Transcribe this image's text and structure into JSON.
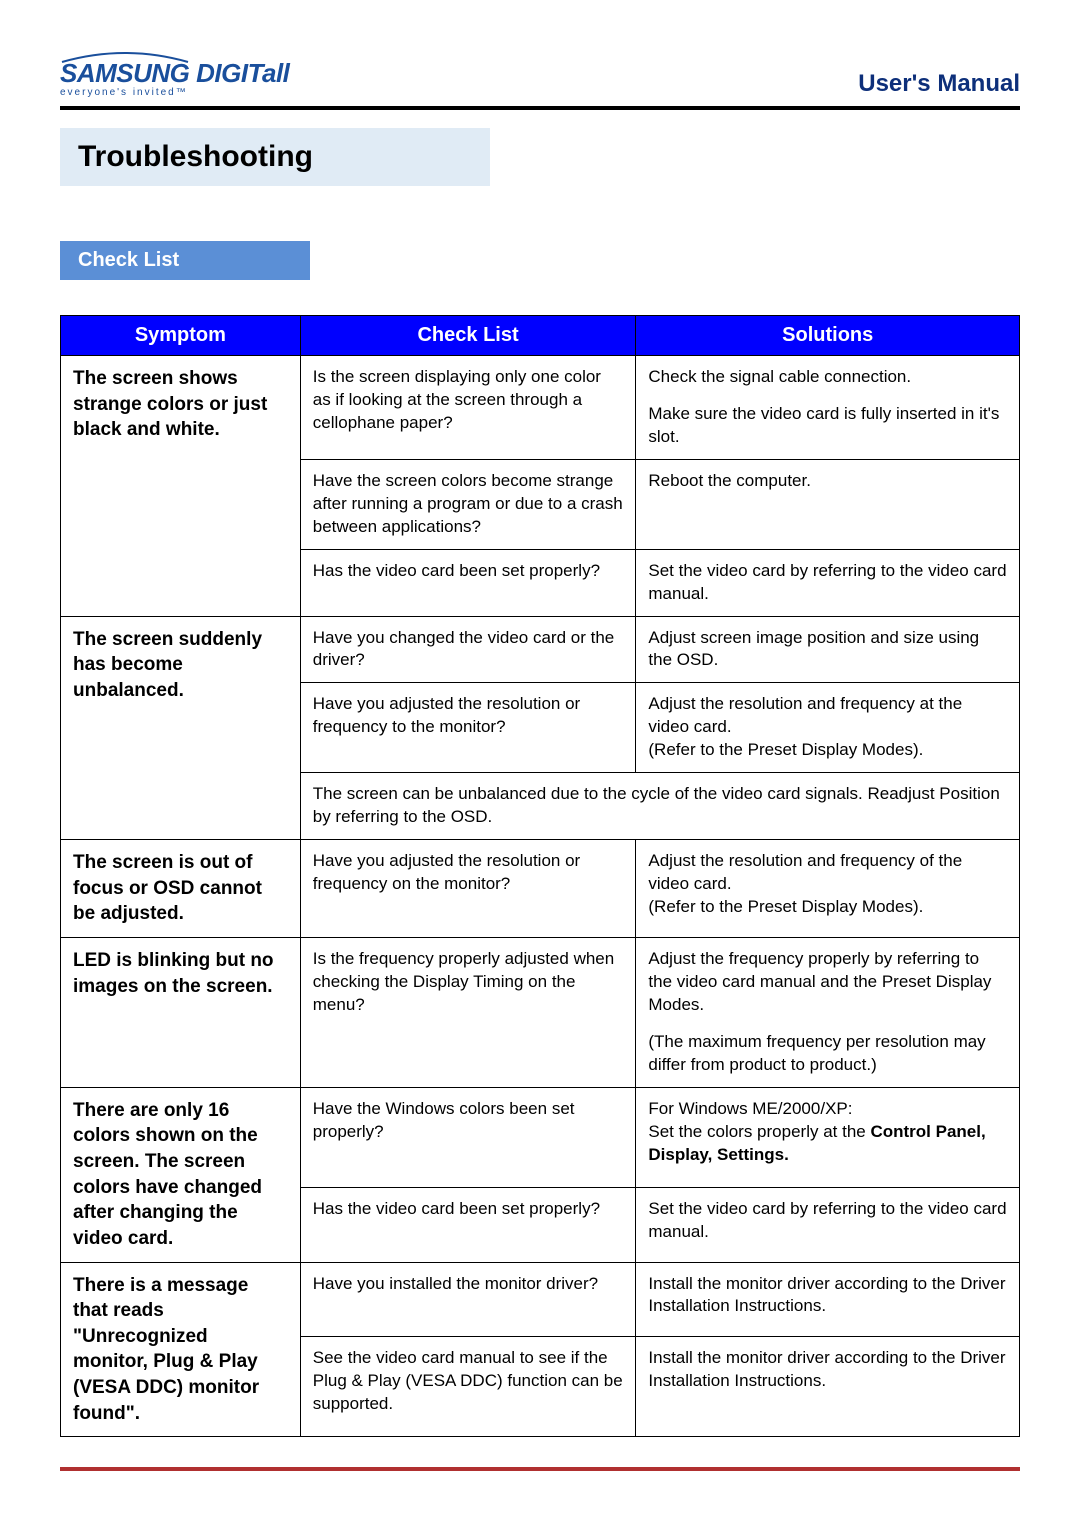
{
  "header": {
    "logo_main": "SAMSUNG DIGITall",
    "logo_sub": "everyone's invited™",
    "manual": "User's Manual"
  },
  "section_title": "Troubleshooting",
  "subsection": "Check List",
  "table": {
    "headers": [
      "Symptom",
      "Check List",
      "Solutions"
    ],
    "colors": {
      "header_bg": "#0000ff",
      "header_fg": "#ffffff",
      "border": "#000000",
      "section_bar_bg": "#e0ebf5",
      "subsection_bg": "#5b8fd6",
      "bottom_rule": "#b03030",
      "logo_color": "#1a4f9c",
      "manual_color": "#0d2f7a"
    },
    "rows": [
      {
        "symptom": "The screen shows strange colors or just black and white.",
        "items": [
          {
            "check": "Is the screen displaying only one color as if looking at the screen through a cellophane paper?",
            "solution_lines": [
              "Check the signal cable connection.",
              "Make sure the video card is fully inserted in it's slot."
            ]
          },
          {
            "check": "Have the screen colors become strange after running a program or due to a crash between applications?",
            "solution_lines": [
              "Reboot the computer."
            ]
          },
          {
            "check": "Has the video card been set properly?",
            "solution_lines": [
              "Set the video card by referring to the video card manual."
            ]
          }
        ]
      },
      {
        "symptom": "The screen suddenly has become unbalanced.",
        "items": [
          {
            "check": "Have you changed the video card or the driver?",
            "solution_lines": [
              "Adjust screen image position and size using the OSD."
            ]
          },
          {
            "check": "Have you adjusted the resolution or frequency to the monitor?",
            "solution_lines": [
              "Adjust the resolution and frequency at the video card.\n(Refer to the Preset Display Modes)."
            ]
          },
          {
            "span_full": true,
            "check": "The screen can be unbalanced due to the cycle of the video card signals. Readjust Position by referring to the OSD."
          }
        ]
      },
      {
        "symptom": "The screen is out of focus or OSD cannot be adjusted.",
        "items": [
          {
            "check": "Have you adjusted the resolution or frequency on the monitor?",
            "solution_lines": [
              "Adjust the resolution and frequency of the video card.\n(Refer to the Preset Display Modes)."
            ]
          }
        ]
      },
      {
        "symptom": "LED is blinking but no images on the screen.",
        "items": [
          {
            "check": "Is the frequency properly adjusted when checking the Display Timing on the menu?",
            "solution_lines": [
              "Adjust the frequency properly by referring to the video card manual and the Preset Display Modes.",
              "(The maximum frequency per resolution may differ from product to product.)"
            ]
          }
        ]
      },
      {
        "symptom": "There are only 16 colors shown on the screen. The screen colors have changed after changing the video card.",
        "items": [
          {
            "check": "Have the Windows colors been set properly?",
            "solution_html": "For Windows ME/2000/XP:<br>Set the colors properly at the <b>Control Panel, Display, Settings.</b>"
          },
          {
            "check": "Has the video card been set properly?",
            "solution_lines": [
              "Set the video card by referring to the video card manual."
            ]
          }
        ]
      },
      {
        "symptom": "There is a message that reads \"Unrecognized monitor, Plug & Play (VESA DDC) monitor found\".",
        "items": [
          {
            "check": "Have you installed the monitor driver?",
            "solution_lines": [
              "Install the monitor driver according to the Driver Installation Instructions."
            ]
          },
          {
            "check": "See the video card manual to see if the Plug & Play (VESA DDC) function can be supported.",
            "solution_lines": [
              "Install the monitor driver according to the Driver Installation Instructions."
            ]
          }
        ]
      }
    ]
  }
}
